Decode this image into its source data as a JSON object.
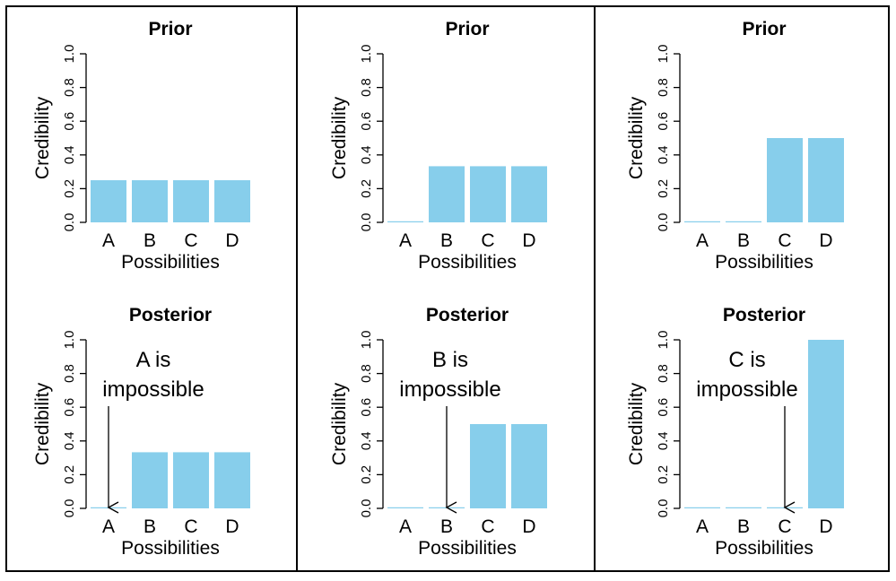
{
  "colors": {
    "bar": "#87CEEB",
    "axis": "#000000",
    "frame": "#000000"
  },
  "chart_data": [
    {
      "type": "bar",
      "title": "Prior",
      "xlabel": "Possibilities",
      "ylabel": "Credibility",
      "categories": [
        "A",
        "B",
        "C",
        "D"
      ],
      "values": [
        0.25,
        0.25,
        0.25,
        0.25
      ],
      "ylim": [
        0,
        1
      ],
      "yticks": [
        "0.0",
        "0.2",
        "0.4",
        "0.6",
        "0.8",
        "1.0"
      ],
      "annotation": []
    },
    {
      "type": "bar",
      "title": "Prior",
      "xlabel": "Possibilities",
      "ylabel": "Credibility",
      "categories": [
        "A",
        "B",
        "C",
        "D"
      ],
      "values": [
        0,
        0.333,
        0.333,
        0.333
      ],
      "ylim": [
        0,
        1
      ],
      "yticks": [
        "0.0",
        "0.2",
        "0.4",
        "0.6",
        "0.8",
        "1.0"
      ],
      "annotation": []
    },
    {
      "type": "bar",
      "title": "Prior",
      "xlabel": "Possibilities",
      "ylabel": "Credibility",
      "categories": [
        "A",
        "B",
        "C",
        "D"
      ],
      "values": [
        0,
        0,
        0.5,
        0.5
      ],
      "ylim": [
        0,
        1
      ],
      "yticks": [
        "0.0",
        "0.2",
        "0.4",
        "0.6",
        "0.8",
        "1.0"
      ],
      "annotation": []
    },
    {
      "type": "bar",
      "title": "Posterior",
      "xlabel": "Possibilities",
      "ylabel": "Credibility",
      "categories": [
        "A",
        "B",
        "C",
        "D"
      ],
      "values": [
        0,
        0.333,
        0.333,
        0.333
      ],
      "ylim": [
        0,
        1
      ],
      "yticks": [
        "0.0",
        "0.2",
        "0.4",
        "0.6",
        "0.8",
        "1.0"
      ],
      "annotation": [
        "A is",
        "impossible"
      ],
      "arrow_category": "A"
    },
    {
      "type": "bar",
      "title": "Posterior",
      "xlabel": "Possibilities",
      "ylabel": "Credibility",
      "categories": [
        "A",
        "B",
        "C",
        "D"
      ],
      "values": [
        0,
        0,
        0.5,
        0.5
      ],
      "ylim": [
        0,
        1
      ],
      "yticks": [
        "0.0",
        "0.2",
        "0.4",
        "0.6",
        "0.8",
        "1.0"
      ],
      "annotation": [
        "B is",
        "impossible"
      ],
      "arrow_category": "B"
    },
    {
      "type": "bar",
      "title": "Posterior",
      "xlabel": "Possibilities",
      "ylabel": "Credibility",
      "categories": [
        "A",
        "B",
        "C",
        "D"
      ],
      "values": [
        0,
        0,
        0,
        1
      ],
      "ylim": [
        0,
        1
      ],
      "yticks": [
        "0.0",
        "0.2",
        "0.4",
        "0.6",
        "0.8",
        "1.0"
      ],
      "annotation": [
        "C is",
        "impossible"
      ],
      "arrow_category": "C"
    }
  ]
}
